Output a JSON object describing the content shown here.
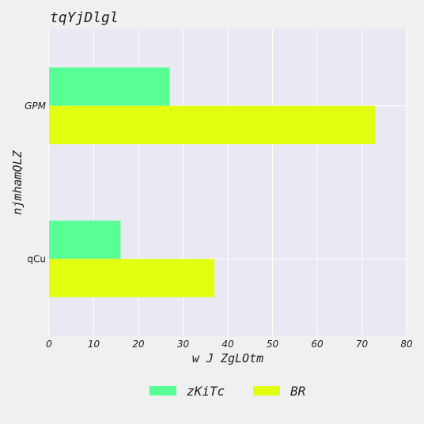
{
  "chart_data": {
    "type": "bar",
    "orientation": "horizontal",
    "title": "tqYjDlgl",
    "xlabel": "w J ZgLOtm",
    "ylabel": "njmhamQLZ",
    "categories": [
      "GPM",
      "qCu"
    ],
    "category_label_styles": [
      "italic",
      "normal"
    ],
    "series": [
      {
        "name": "zKiTc",
        "values": [
          27,
          16
        ],
        "color": "#57ff94"
      },
      {
        "name": "BR",
        "values": [
          73,
          37
        ],
        "color": "#e2ff12"
      }
    ],
    "xlim": [
      0,
      80
    ],
    "xticks": [
      0,
      10,
      20,
      30,
      40,
      50,
      60,
      70,
      80
    ],
    "grid": true,
    "legend_position": "bottom-center",
    "plot_background": "#e8e9f2",
    "grid_color": "#ffffff"
  }
}
